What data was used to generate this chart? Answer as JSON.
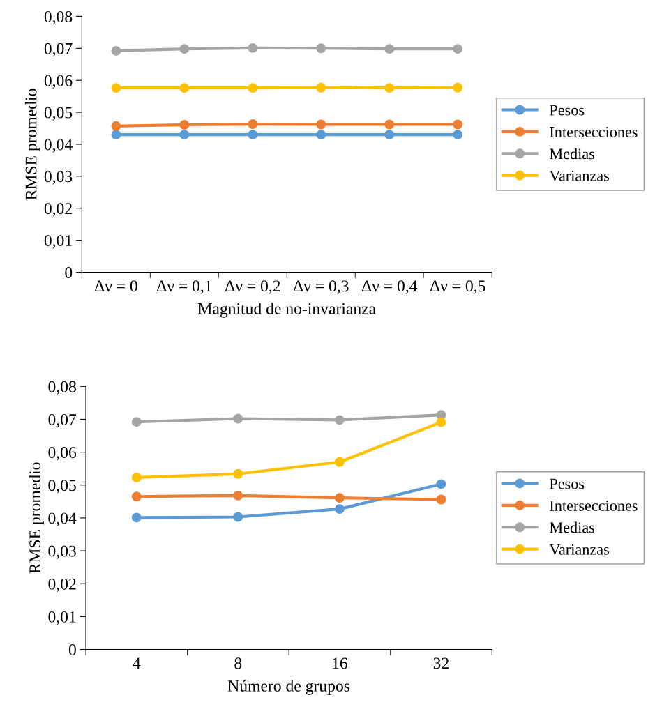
{
  "chart_data": [
    {
      "type": "line",
      "xlabel": "Magnitud de no-invarianza",
      "ylabel": "RMSE promedio",
      "categories": [
        "Δν = 0",
        "Δν = 0,1",
        "Δν = 0,2",
        "Δν = 0,3",
        "Δν = 0,4",
        "Δν = 0,5"
      ],
      "series": [
        {
          "name": "Pesos",
          "color": "#5b9bd5",
          "values": [
            0.043,
            0.043,
            0.043,
            0.043,
            0.043,
            0.043
          ]
        },
        {
          "name": "Intersecciones",
          "color": "#ed7d31",
          "values": [
            0.0457,
            0.0461,
            0.0463,
            0.0462,
            0.0462,
            0.0462
          ]
        },
        {
          "name": "Medias",
          "color": "#a5a5a5",
          "values": [
            0.0692,
            0.0698,
            0.0701,
            0.07,
            0.0698,
            0.0698
          ]
        },
        {
          "name": "Varianzas",
          "color": "#ffc000",
          "values": [
            0.0576,
            0.0576,
            0.0576,
            0.0577,
            0.0576,
            0.0577
          ]
        }
      ],
      "ylim": [
        0,
        0.08
      ],
      "yticks": [
        0,
        {
          "value": 0.01,
          "label": "0,01"
        },
        {
          "value": 0.02,
          "label": "0,02"
        },
        {
          "value": 0.03,
          "label": "0,03"
        },
        {
          "value": 0.04,
          "label": "0,04"
        },
        {
          "value": 0.05,
          "label": "0,05"
        },
        {
          "value": 0.06,
          "label": "0,06"
        },
        {
          "value": 0.07,
          "label": "0,07"
        },
        {
          "value": 0.08,
          "label": "0,08"
        }
      ],
      "grid": false,
      "legend": "right",
      "marker": "circle",
      "line_style": "solid"
    },
    {
      "type": "line",
      "xlabel": "Número de grupos",
      "ylabel": "RMSE promedio",
      "categories": [
        "4",
        "8",
        "16",
        "32"
      ],
      "series": [
        {
          "name": "Pesos",
          "color": "#5b9bd5",
          "values": [
            0.0401,
            0.0403,
            0.0427,
            0.0503
          ]
        },
        {
          "name": "Intersecciones",
          "color": "#ed7d31",
          "values": [
            0.0465,
            0.0468,
            0.0461,
            0.0456
          ]
        },
        {
          "name": "Medias",
          "color": "#a5a5a5",
          "values": [
            0.0692,
            0.0702,
            0.0698,
            0.0713
          ]
        },
        {
          "name": "Varianzas",
          "color": "#ffc000",
          "values": [
            0.0523,
            0.0534,
            0.057,
            0.0691
          ]
        }
      ],
      "ylim": [
        0,
        0.08
      ],
      "yticks": [
        0,
        {
          "value": 0.01,
          "label": "0,01"
        },
        {
          "value": 0.02,
          "label": "0,02"
        },
        {
          "value": 0.03,
          "label": "0,03"
        },
        {
          "value": 0.04,
          "label": "0,04"
        },
        {
          "value": 0.05,
          "label": "0,05"
        },
        {
          "value": 0.06,
          "label": "0,06"
        },
        {
          "value": 0.07,
          "label": "0,07"
        },
        {
          "value": 0.08,
          "label": "0,08"
        }
      ],
      "grid": false,
      "legend": "right",
      "marker": "circle",
      "line_style": "solid"
    }
  ]
}
